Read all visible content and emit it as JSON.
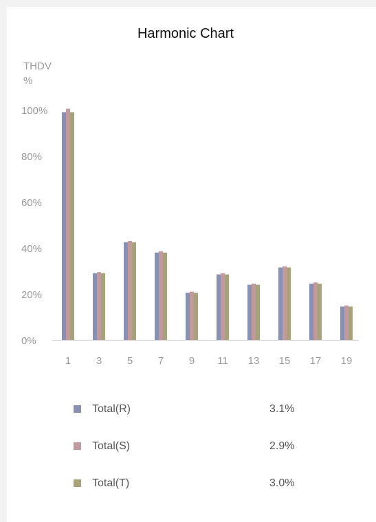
{
  "chart_data": {
    "type": "bar",
    "title": "Harmonic Chart",
    "ylabel_line1": "THDV",
    "ylabel_line2": "%",
    "xlabel": "",
    "categories": [
      "1",
      "3",
      "5",
      "7",
      "9",
      "11",
      "13",
      "15",
      "17",
      "19"
    ],
    "ylim": [
      0,
      100
    ],
    "yticks": [
      "0%",
      "20%",
      "40%",
      "60%",
      "80%",
      "100%"
    ],
    "grid": false,
    "legend_position": "bottom",
    "series": [
      {
        "name": "Total(R)",
        "color": "#8791b3",
        "total": "3.1%",
        "values": [
          99,
          29,
          42.5,
          38,
          20.5,
          28.5,
          24,
          31.5,
          24.5,
          14.5
        ]
      },
      {
        "name": "Total(S)",
        "color": "#c2999c",
        "total": "2.9%",
        "values": [
          100.5,
          29.5,
          43,
          38.5,
          21,
          29,
          24.5,
          32,
          25,
          15
        ]
      },
      {
        "name": "Total(T)",
        "color": "#a8a27a",
        "total": "3.0%",
        "values": [
          99,
          29,
          42.5,
          38,
          20.5,
          28.5,
          24,
          31.5,
          24.5,
          14.5
        ]
      }
    ]
  }
}
